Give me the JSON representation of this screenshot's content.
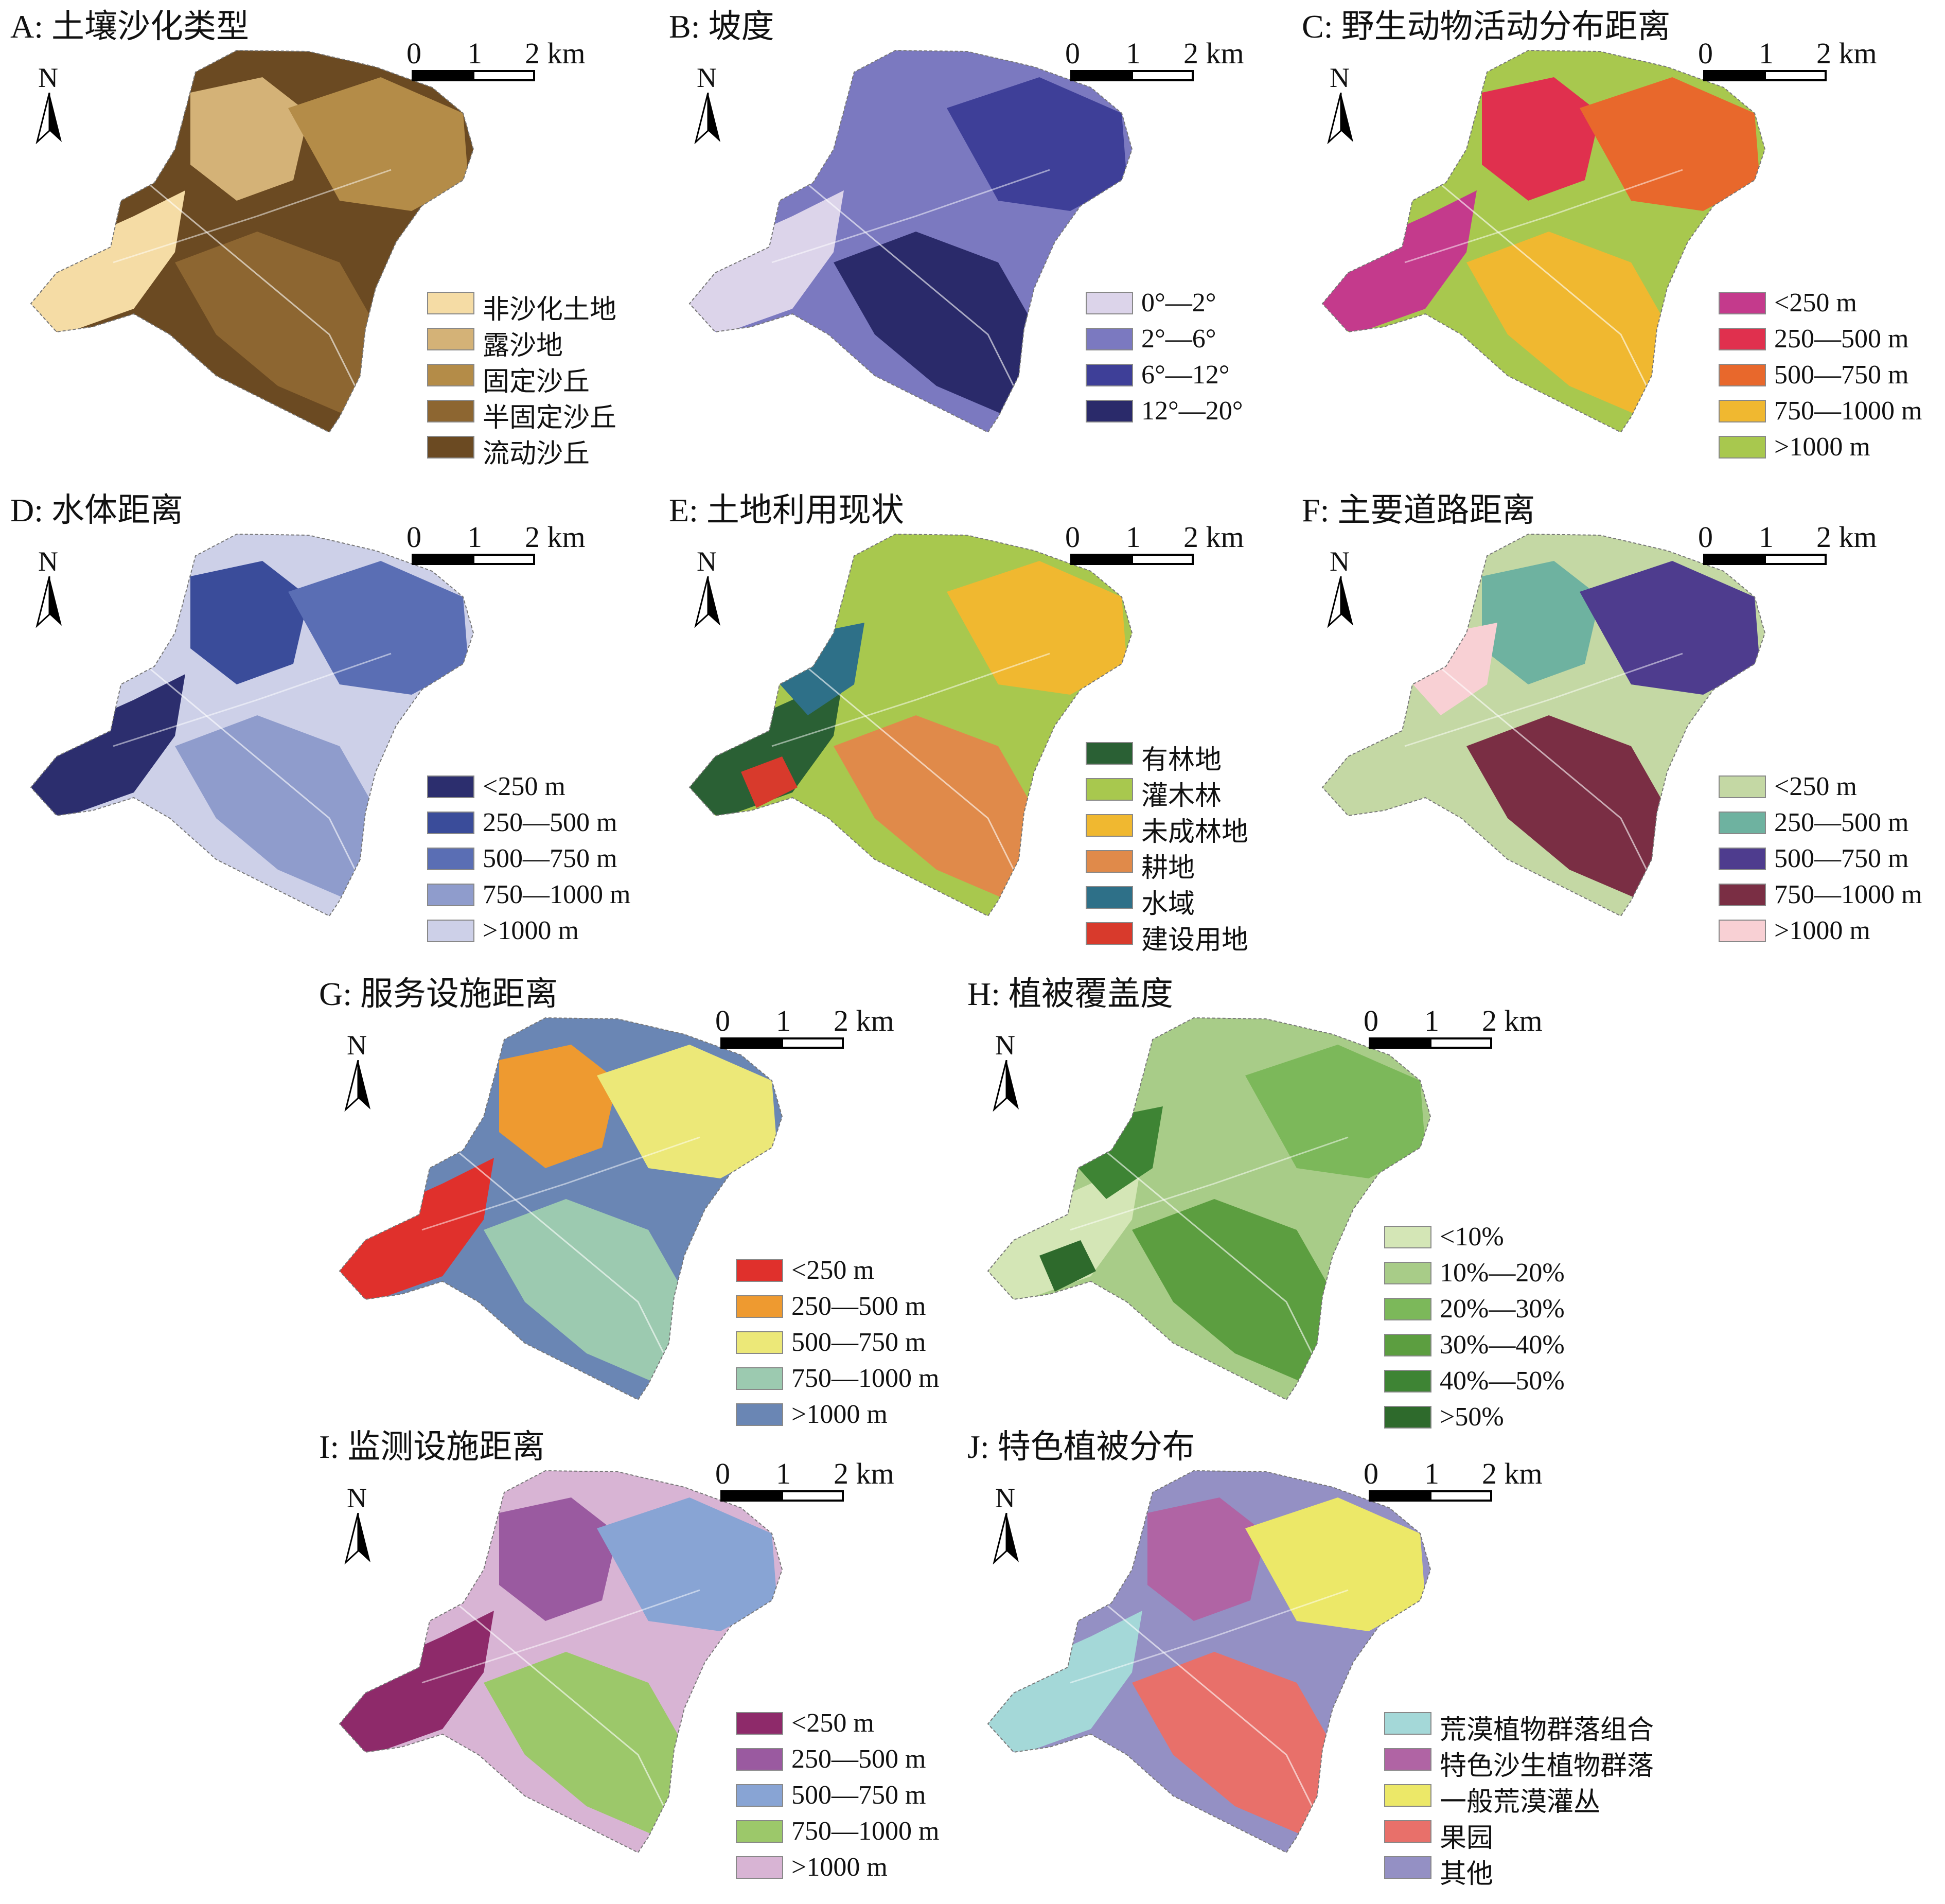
{
  "scale": {
    "zero": "0",
    "one": "1",
    "two": "2 km"
  },
  "north_label": "N",
  "panels": [
    {
      "id": "A",
      "title": "A: 土壤沙化类型",
      "base": "#6b4a22",
      "zones": [
        "#f5dca5",
        "#d4b277",
        "#b48c48",
        "#8d6631",
        "#6b4a22"
      ],
      "legend": [
        {
          "label": "非沙化土地",
          "color": "#f5dca5"
        },
        {
          "label": "露沙地",
          "color": "#d4b277"
        },
        {
          "label": "固定沙丘",
          "color": "#b48c48"
        },
        {
          "label": "半固定沙丘",
          "color": "#8d6631"
        },
        {
          "label": "流动沙丘",
          "color": "#6b4a22"
        }
      ]
    },
    {
      "id": "B",
      "title": "B: 坡度",
      "base": "#7b79c0",
      "zones": [
        "#dcd4ea",
        "#7b79c0",
        "#3e3f98",
        "#2a2a6a"
      ],
      "legend": [
        {
          "label": "0°—2°",
          "color": "#dcd4ea"
        },
        {
          "label": "2°—6°",
          "color": "#7b79c0"
        },
        {
          "label": "6°—12°",
          "color": "#3e3f98"
        },
        {
          "label": "12°—20°",
          "color": "#2a2a6a"
        }
      ]
    },
    {
      "id": "C",
      "title": "C: 野生动物活动分布距离",
      "base": "#a8c84e",
      "zones": [
        "#c43a8c",
        "#e0304e",
        "#e8682c",
        "#f0b830",
        "#a8c84e"
      ],
      "legend": [
        {
          "label": "<250 m",
          "color": "#c43a8c"
        },
        {
          "label": "250—500 m",
          "color": "#e0304e"
        },
        {
          "label": "500—750 m",
          "color": "#e8682c"
        },
        {
          "label": "750—1000 m",
          "color": "#f0b830"
        },
        {
          "label": ">1000 m",
          "color": "#a8c84e"
        }
      ]
    },
    {
      "id": "D",
      "title": "D: 水体距离",
      "base": "#cdd0e8",
      "zones": [
        "#2c2e6e",
        "#3a4c9a",
        "#5a6eb4",
        "#8f9ccc",
        "#cdd0e8"
      ],
      "legend": [
        {
          "label": "<250 m",
          "color": "#2c2e6e"
        },
        {
          "label": "250—500 m",
          "color": "#3a4c9a"
        },
        {
          "label": "500—750 m",
          "color": "#5a6eb4"
        },
        {
          "label": "750—1000 m",
          "color": "#8f9ccc"
        },
        {
          "label": ">1000 m",
          "color": "#cdd0e8"
        }
      ]
    },
    {
      "id": "E",
      "title": "E: 土地利用现状",
      "base": "#a8c84e",
      "zones": [
        "#2a6034",
        "#a8c84e",
        "#f0b830",
        "#e08a4a",
        "#2e7088",
        "#d83a2c"
      ],
      "legend": [
        {
          "label": "有林地",
          "color": "#2a6034"
        },
        {
          "label": "灌木林",
          "color": "#a8c84e"
        },
        {
          "label": "未成林地",
          "color": "#f0b830"
        },
        {
          "label": "耕地",
          "color": "#e08a4a"
        },
        {
          "label": "水域",
          "color": "#2e7088"
        },
        {
          "label": "建设用地",
          "color": "#d83a2c"
        }
      ]
    },
    {
      "id": "F",
      "title": "F: 主要道路距离",
      "base": "#c4d8a4",
      "zones": [
        "#c4d8a4",
        "#6eb2a0",
        "#4e3c8e",
        "#7a2e44",
        "#f8d0d4"
      ],
      "legend": [
        {
          "label": "<250 m",
          "color": "#c4d8a4"
        },
        {
          "label": "250—500 m",
          "color": "#6eb2a0"
        },
        {
          "label": "500—750 m",
          "color": "#4e3c8e"
        },
        {
          "label": "750—1000 m",
          "color": "#7a2e44"
        },
        {
          "label": ">1000 m",
          "color": "#f8d0d4"
        }
      ]
    },
    {
      "id": "G",
      "title": "G: 服务设施距离",
      "base": "#6a86b4",
      "zones": [
        "#e0302c",
        "#ee9a30",
        "#ece878",
        "#9ccab0",
        "#6a86b4"
      ],
      "legend": [
        {
          "label": "<250 m",
          "color": "#e0302c"
        },
        {
          "label": "250—500 m",
          "color": "#ee9a30"
        },
        {
          "label": "500—750 m",
          "color": "#ece878"
        },
        {
          "label": "750—1000 m",
          "color": "#9ccab0"
        },
        {
          "label": ">1000 m",
          "color": "#6a86b4"
        }
      ]
    },
    {
      "id": "H",
      "title": "H: 植被覆盖度",
      "base": "#a8cc88",
      "zones": [
        "#d4e6b6",
        "#a8cc88",
        "#7cb85a",
        "#5c9e40",
        "#3e8434",
        "#2e6a2c"
      ],
      "legend": [
        {
          "label": "<10%",
          "color": "#d4e6b6"
        },
        {
          "label": "10%—20%",
          "color": "#a8cc88"
        },
        {
          "label": "20%—30%",
          "color": "#7cb85a"
        },
        {
          "label": "30%—40%",
          "color": "#5c9e40"
        },
        {
          "label": "40%—50%",
          "color": "#3e8434"
        },
        {
          "label": ">50%",
          "color": "#2e6a2c"
        }
      ]
    },
    {
      "id": "I",
      "title": "I: 监测设施距离",
      "base": "#d8b4d4",
      "zones": [
        "#8e2a6a",
        "#9a5aa0",
        "#88a4d4",
        "#9cc86a",
        "#d8b4d4"
      ],
      "legend": [
        {
          "label": "<250 m",
          "color": "#8e2a6a"
        },
        {
          "label": "250—500 m",
          "color": "#9a5aa0"
        },
        {
          "label": "500—750 m",
          "color": "#88a4d4"
        },
        {
          "label": "750—1000 m",
          "color": "#9cc86a"
        },
        {
          "label": ">1000 m",
          "color": "#d8b4d4"
        }
      ]
    },
    {
      "id": "J",
      "title": "J: 特色植被分布",
      "base": "#9490c4",
      "zones": [
        "#a4d8d8",
        "#b064a4",
        "#ece868",
        "#e8706a",
        "#9490c4"
      ],
      "legend": [
        {
          "label": "荒漠植物群落组合",
          "color": "#a4d8d8"
        },
        {
          "label": "特色沙生植物群落",
          "color": "#b064a4"
        },
        {
          "label": "一般荒漠灌丛",
          "color": "#ece868"
        },
        {
          "label": "果园",
          "color": "#e8706a"
        },
        {
          "label": "其他",
          "color": "#9490c4"
        }
      ]
    }
  ]
}
